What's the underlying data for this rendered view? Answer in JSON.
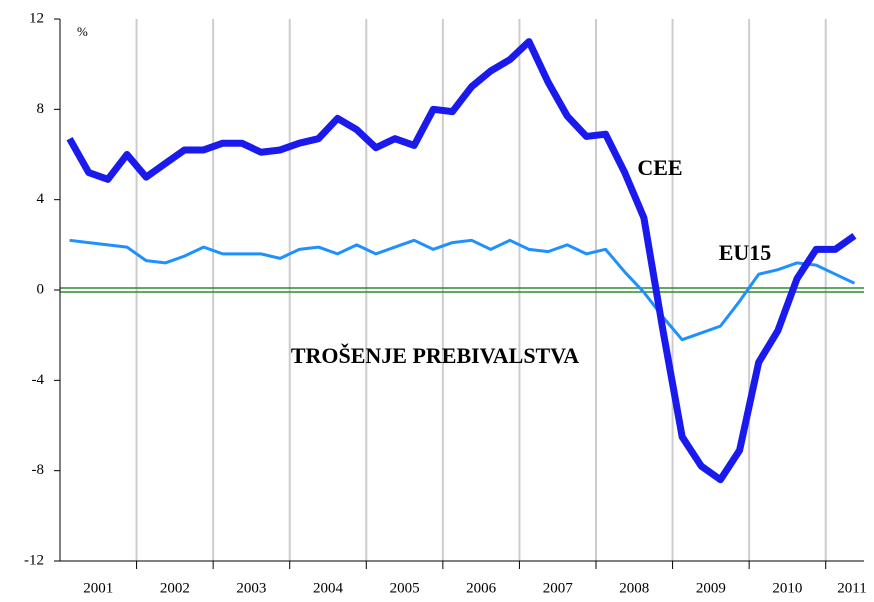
{
  "chart_data": {
    "type": "line",
    "y_unit": "%",
    "annotations": [
      "CEE",
      "EU15",
      "TROŠENJE PREBIVALSTVA"
    ],
    "x": [
      2001.125,
      2001.375,
      2001.625,
      2001.875,
      2002.125,
      2002.375,
      2002.625,
      2002.875,
      2003.125,
      2003.375,
      2003.625,
      2003.875,
      2004.125,
      2004.375,
      2004.625,
      2004.875,
      2005.125,
      2005.375,
      2005.625,
      2005.875,
      2006.125,
      2006.375,
      2006.625,
      2006.875,
      2007.125,
      2007.375,
      2007.625,
      2007.875,
      2008.125,
      2008.375,
      2008.625,
      2008.875,
      2009.125,
      2009.375,
      2009.625,
      2009.875,
      2010.125,
      2010.375,
      2010.625,
      2010.875,
      2011.125,
      2011.375
    ],
    "series": [
      {
        "name": "CEE",
        "color": "#1a1aee",
        "width": 7,
        "values": [
          6.7,
          5.2,
          4.9,
          6.0,
          5.0,
          5.6,
          6.2,
          6.2,
          6.5,
          6.5,
          6.1,
          6.2,
          6.5,
          6.7,
          7.6,
          7.1,
          6.3,
          6.7,
          6.4,
          8.0,
          7.9,
          9.0,
          9.7,
          10.2,
          11.0,
          9.2,
          7.7,
          6.8,
          6.9,
          5.2,
          3.2,
          -1.8,
          -6.5,
          -7.8,
          -8.4,
          -7.1,
          -3.2,
          -1.8,
          0.5,
          1.8,
          1.8,
          2.4
        ]
      },
      {
        "name": "EU15",
        "color": "#1e90ff",
        "width": 3,
        "values": [
          2.2,
          2.1,
          2.0,
          1.9,
          1.3,
          1.2,
          1.5,
          1.9,
          1.6,
          1.6,
          1.6,
          1.4,
          1.8,
          1.9,
          1.6,
          2.0,
          1.6,
          1.9,
          2.2,
          1.8,
          2.1,
          2.2,
          1.8,
          2.2,
          1.8,
          1.7,
          2.0,
          1.6,
          1.8,
          0.8,
          -0.1,
          -1.2,
          -2.2,
          -1.9,
          -1.6,
          -0.5,
          0.7,
          0.9,
          1.2,
          1.1,
          0.7,
          0.3
        ]
      }
    ],
    "xlim": [
      2001,
      2011.5
    ],
    "xticks": [
      {
        "value": 2001.5,
        "label": "2001"
      },
      {
        "value": 2002.5,
        "label": "2002"
      },
      {
        "value": 2003.5,
        "label": "2003"
      },
      {
        "value": 2004.5,
        "label": "2004"
      },
      {
        "value": 2005.5,
        "label": "2005"
      },
      {
        "value": 2006.5,
        "label": "2006"
      },
      {
        "value": 2007.5,
        "label": "2007"
      },
      {
        "value": 2008.5,
        "label": "2008"
      },
      {
        "value": 2009.5,
        "label": "2009"
      },
      {
        "value": 2010.5,
        "label": "2010"
      },
      {
        "value": 2011.5,
        "label": "2011"
      }
    ],
    "xgrid": [
      2002,
      2003,
      2004,
      2005,
      2006,
      2007,
      2008,
      2009,
      2010,
      2011
    ],
    "ylim": [
      -12,
      12
    ],
    "yticks": [
      12,
      8,
      4,
      0,
      -4,
      -8,
      -12
    ],
    "zero_line_color": "#2e8b2e",
    "grid_color": "#cccccc"
  }
}
